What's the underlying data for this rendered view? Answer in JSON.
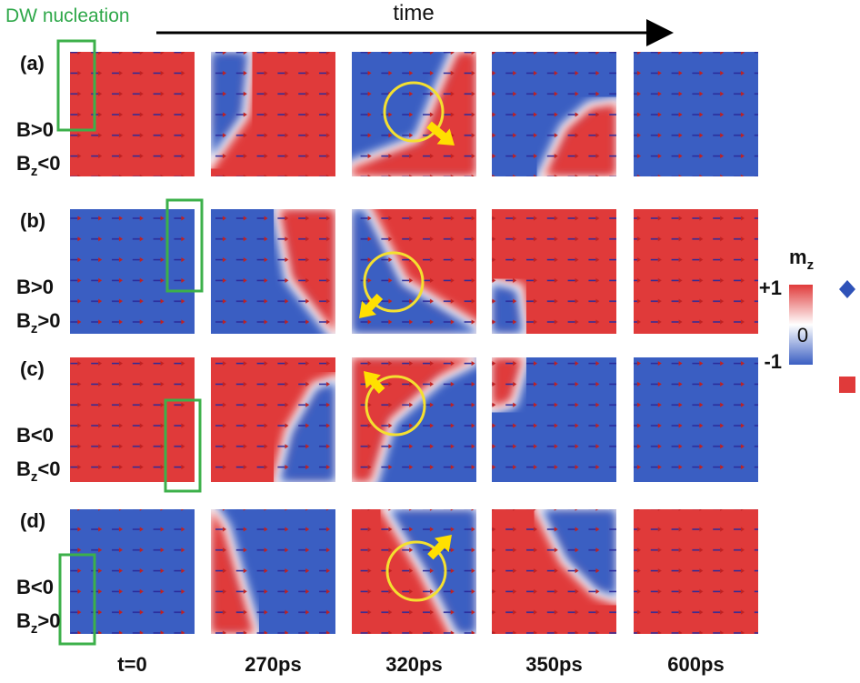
{
  "header": {
    "nucleation_label": "DW nucleation",
    "time_label": "time"
  },
  "rows": [
    {
      "label": "(a)",
      "field": "B>0",
      "bz": {
        "symbol": "B",
        "subscript": "z",
        "relation": "<0"
      }
    },
    {
      "label": "(b)",
      "field": "B>0",
      "bz": {
        "symbol": "B",
        "subscript": "z",
        "relation": ">0"
      }
    },
    {
      "label": "(c)",
      "field": "B<0",
      "bz": {
        "symbol": "B",
        "subscript": "z",
        "relation": "<0"
      }
    },
    {
      "label": "(d)",
      "field": "B<0",
      "bz": {
        "symbol": "B",
        "subscript": "z",
        "relation": ">0"
      }
    }
  ],
  "columns": [
    "t=0",
    "270ps",
    "320ps",
    "350ps",
    "600ps"
  ],
  "colorbar": {
    "symbol": "m",
    "subscript": "z",
    "ticks": [
      "+1",
      "0",
      "-1"
    ]
  }
}
